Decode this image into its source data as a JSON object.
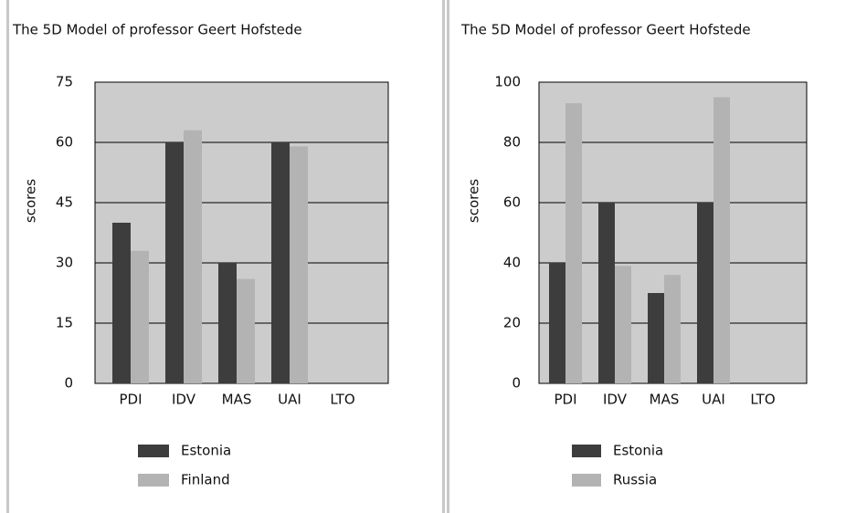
{
  "chart_data": [
    {
      "type": "bar",
      "title": "The 5D Model of professor Geert Hofstede",
      "y_label": "scores",
      "categories": [
        "PDI",
        "IDV",
        "MAS",
        "UAI",
        "LTO"
      ],
      "series": [
        {
          "name": "Estonia",
          "color": "#3d3d3d",
          "values": [
            40,
            60,
            30,
            60,
            null
          ]
        },
        {
          "name": "Finland",
          "color": "#b3b3b3",
          "values": [
            33,
            63,
            26,
            59,
            null
          ]
        }
      ],
      "ylim": [
        0,
        75
      ],
      "yticks": [
        0,
        15,
        30,
        45,
        60,
        75
      ],
      "grid": true
    },
    {
      "type": "bar",
      "title": "The 5D Model of professor Geert Hofstede",
      "y_label": "scores",
      "categories": [
        "PDI",
        "IDV",
        "MAS",
        "UAI",
        "LTO"
      ],
      "series": [
        {
          "name": "Estonia",
          "color": "#3d3d3d",
          "values": [
            40,
            60,
            30,
            60,
            null
          ]
        },
        {
          "name": "Russia",
          "color": "#b3b3b3",
          "values": [
            93,
            39,
            36,
            95,
            null
          ]
        }
      ],
      "ylim": [
        0,
        100
      ],
      "yticks": [
        0,
        20,
        40,
        60,
        80,
        100
      ],
      "grid": true
    }
  ]
}
